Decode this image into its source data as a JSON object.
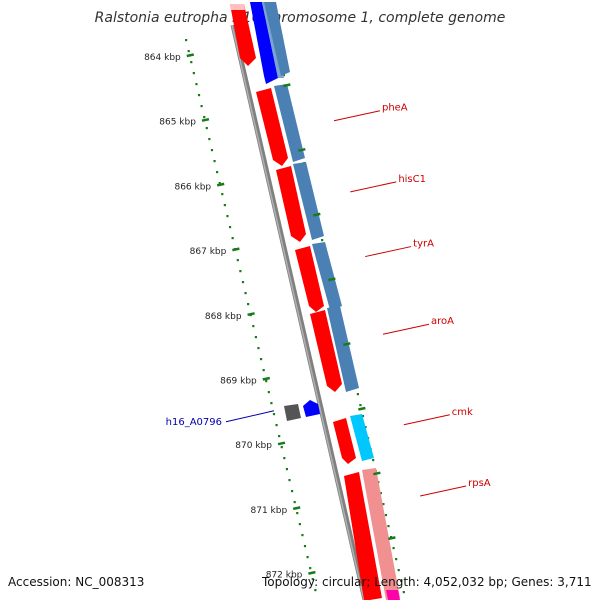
{
  "title": "Ralstonia eutropha H16 chromosome 1, complete genome",
  "footer": {
    "accession": "Accession: NC_008313",
    "summary": "Topology: circular; Length: 4,052,032 bp; Genes: 3,711"
  },
  "colors": {
    "cds_forward": "#ff0000",
    "cds_light": "#ff9a9a",
    "gene_steel": "#4a80b4",
    "gene_blue": "#0000ff",
    "gene_cyan": "#00c8ff",
    "gene_dark": "#555555",
    "tick_green": "#1a7a1a",
    "gene_label": "#cc0000",
    "locus_label": "#0000aa",
    "backbone": "#808080"
  },
  "axis": {
    "ticks": [
      "864 kbp",
      "865 kbp",
      "866 kbp",
      "867 kbp",
      "868 kbp",
      "869 kbp",
      "870 kbp",
      "871 kbp",
      "872 kbp"
    ]
  },
  "gene_labels": [
    {
      "name": "pheA",
      "kbp": 865.0
    },
    {
      "name": "hisC1",
      "kbp": 866.1
    },
    {
      "name": "tyrA",
      "kbp": 867.1
    },
    {
      "name": "aroA",
      "kbp": 868.3
    },
    {
      "name": "cmk",
      "kbp": 869.7
    },
    {
      "name": "rpsA",
      "kbp": 870.8
    }
  ],
  "locus_labels": [
    {
      "name": "h16_A0796",
      "kbp": 869.7
    }
  ]
}
